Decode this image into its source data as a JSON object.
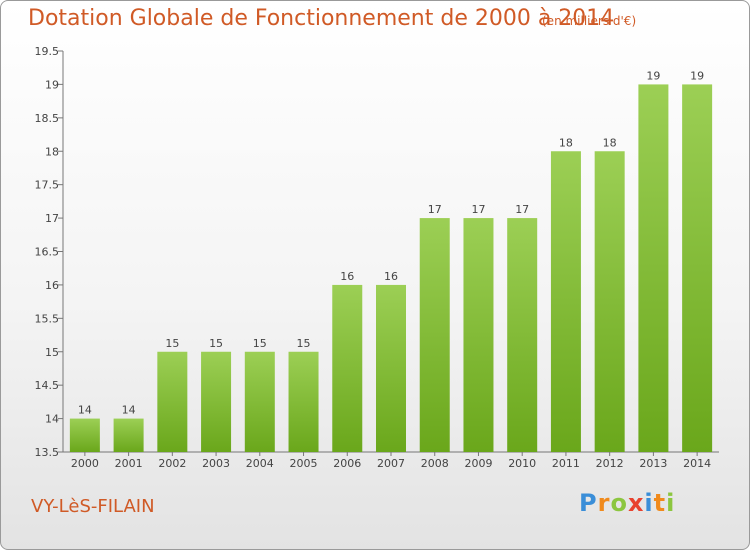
{
  "header": {
    "title": "Dotation Globale de Fonctionnement de 2000 à 2014",
    "subtitle": "(en milliers d'€)"
  },
  "footer": {
    "town": "VY-LèS-FILAIN",
    "logo": "Proxiti",
    "logo_letters": [
      {
        "ch": "P",
        "color": "#3a8ed8"
      },
      {
        "ch": "r",
        "color": "#f08a1c"
      },
      {
        "ch": "o",
        "color": "#8cc63f"
      },
      {
        "ch": "x",
        "color": "#e8422e"
      },
      {
        "ch": "i",
        "color": "#3a8ed8"
      },
      {
        "ch": "t",
        "color": "#f08a1c"
      },
      {
        "ch": "i",
        "color": "#8cc63f"
      }
    ]
  },
  "colors": {
    "accent": "#d05a26",
    "bar_top": "#9ccf55",
    "bar_bottom": "#6aa71b"
  },
  "chart_data": {
    "type": "bar",
    "title": "Dotation Globale de Fonctionnement de 2000 à 2014",
    "subtitle": "(en milliers d'€)",
    "xlabel": "",
    "ylabel": "",
    "categories": [
      "2000",
      "2001",
      "2002",
      "2003",
      "2004",
      "2005",
      "2006",
      "2007",
      "2008",
      "2009",
      "2010",
      "2011",
      "2012",
      "2013",
      "2014"
    ],
    "values": [
      14,
      14,
      15,
      15,
      15,
      15,
      16,
      16,
      17,
      17,
      17,
      18,
      18,
      19,
      19
    ],
    "ylim": [
      13.5,
      19.5
    ],
    "yticks": [
      "13.5",
      "14",
      "14.5",
      "15",
      "15.5",
      "16",
      "16.5",
      "17",
      "17.5",
      "18",
      "18.5",
      "19",
      "19.5"
    ],
    "grid": false,
    "legend": "none"
  }
}
